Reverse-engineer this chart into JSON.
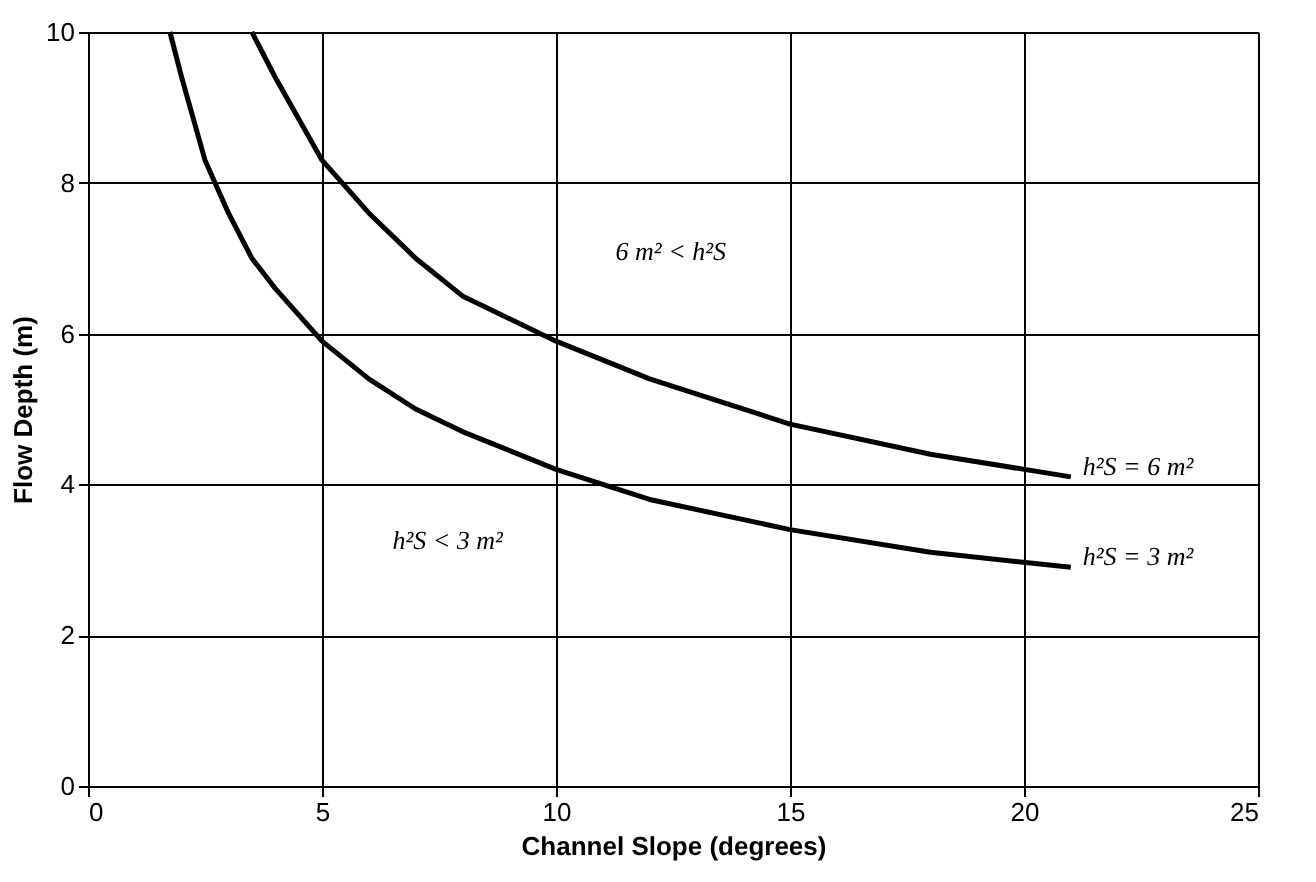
{
  "chart_data": {
    "type": "line",
    "xlabel": "Channel Slope (degrees)",
    "ylabel": "Flow Depth (m)",
    "xlim": [
      0,
      25
    ],
    "xticks": [
      0,
      5,
      10,
      15,
      20,
      25
    ],
    "ylim": [
      0,
      10
    ],
    "yticks": [
      0,
      2,
      4,
      6,
      8,
      10
    ],
    "grid": true,
    "marker": "none",
    "line_style": "solid",
    "series": [
      {
        "color": "#000000",
        "x": [
          3.5,
          4,
          5,
          6,
          7,
          8,
          10,
          12,
          15,
          18,
          21
        ],
        "values": [
          10,
          9.4,
          8.3,
          7.6,
          7.0,
          6.5,
          5.9,
          5.4,
          4.8,
          4.4,
          4.1
        ]
      },
      {
        "color": "#000000",
        "x": [
          1.75,
          2,
          2.5,
          3,
          3.5,
          4,
          5,
          6,
          7,
          8,
          10,
          12,
          15,
          18,
          21
        ],
        "values": [
          10,
          9.4,
          8.3,
          7.6,
          7.0,
          6.6,
          5.9,
          5.4,
          5.0,
          4.7,
          4.2,
          3.8,
          3.4,
          3.1,
          2.9
        ]
      }
    ],
    "annotations": [
      "6 m² < h²S",
      "h²S < 3 m²",
      "h²S = 6 m²",
      "h²S = 3 m²"
    ]
  }
}
